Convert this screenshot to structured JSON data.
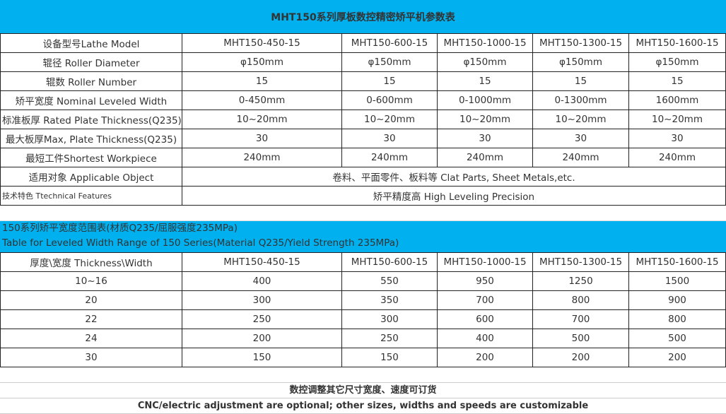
{
  "title": "MHT150系列厚板数控精密矫平机参数表",
  "spec_table": {
    "models": [
      "MHT150-450-15",
      "MHT150-600-15",
      "MHT150-1000-15",
      "MHT150-1300-15",
      "MHT150-1600-15"
    ],
    "rows": [
      {
        "label": "设备型号Lathe Model",
        "values": [
          "MHT150-450-15",
          "MHT150-600-15",
          "MHT150-1000-15",
          "MHT150-1300-15",
          "MHT150-1600-15"
        ]
      },
      {
        "label": "辊径 Roller Diameter",
        "values": [
          "φ150mm",
          "φ150mm",
          "φ150mm",
          "φ150mm",
          "φ150mm"
        ]
      },
      {
        "label": "辊数 Roller Number",
        "values": [
          "15",
          "15",
          "15",
          "15",
          "15"
        ]
      },
      {
        "label": "矫平宽度 Nominal Leveled Width",
        "values": [
          "0-450mm",
          "0-600mm",
          "0-1000mm",
          "0-1300mm",
          "1600mm"
        ]
      },
      {
        "label": "标准板厚 Rated Plate Thickness(Q235)",
        "values": [
          "10~20mm",
          "10~20mm",
          "10~20mm",
          "10~20mm",
          "10~20mm"
        ]
      },
      {
        "label": "最大板厚Max, Plate Thickness(Q235)",
        "values": [
          "30",
          "30",
          "30",
          "30",
          "30"
        ]
      },
      {
        "label": "最短工件Shortest Workpiece",
        "values": [
          "240mm",
          "240mm",
          "240mm",
          "240mm",
          "240mm"
        ]
      }
    ],
    "applicable_label": "适用对象 Applicable Object",
    "applicable_value": "卷料、平面零件、板料等 Clat Parts, Sheet Metals,etc.",
    "features_label": "技术特色 Ttechnical Features",
    "features_value": "矫平精度高 High Leveling Precision"
  },
  "width_table": {
    "title_cn": "150系列矫平宽度范围表(材质Q235/屈服强度235MPa)",
    "title_en": "Table for Leveled Width Range of 150 Series(Material Q235/Yield Strength 235MPa)",
    "header": [
      "厚度\\宽度 Thickness\\Width",
      "MHT150-450-15",
      "MHT150-600-15",
      "MHT150-1000-15",
      "MHT150-1300-15",
      "MHT150-1600-15"
    ],
    "rows": [
      [
        "10~16",
        "400",
        "550",
        "950",
        "1250",
        "1500"
      ],
      [
        "20",
        "300",
        "350",
        "700",
        "800",
        "900"
      ],
      [
        "22",
        "250",
        "300",
        "600",
        "700",
        "800"
      ],
      [
        "24",
        "200",
        "250",
        "400",
        "500",
        "500"
      ],
      [
        "30",
        "150",
        "150",
        "200",
        "200",
        "200"
      ]
    ]
  },
  "notes": {
    "cn": "数控调整其它尺寸宽度、速度可订货",
    "en": "CNC/electric adjustment are optional; other sizes, widths and speeds are customizable"
  },
  "colors": {
    "header_blue": "#00b0ef"
  }
}
